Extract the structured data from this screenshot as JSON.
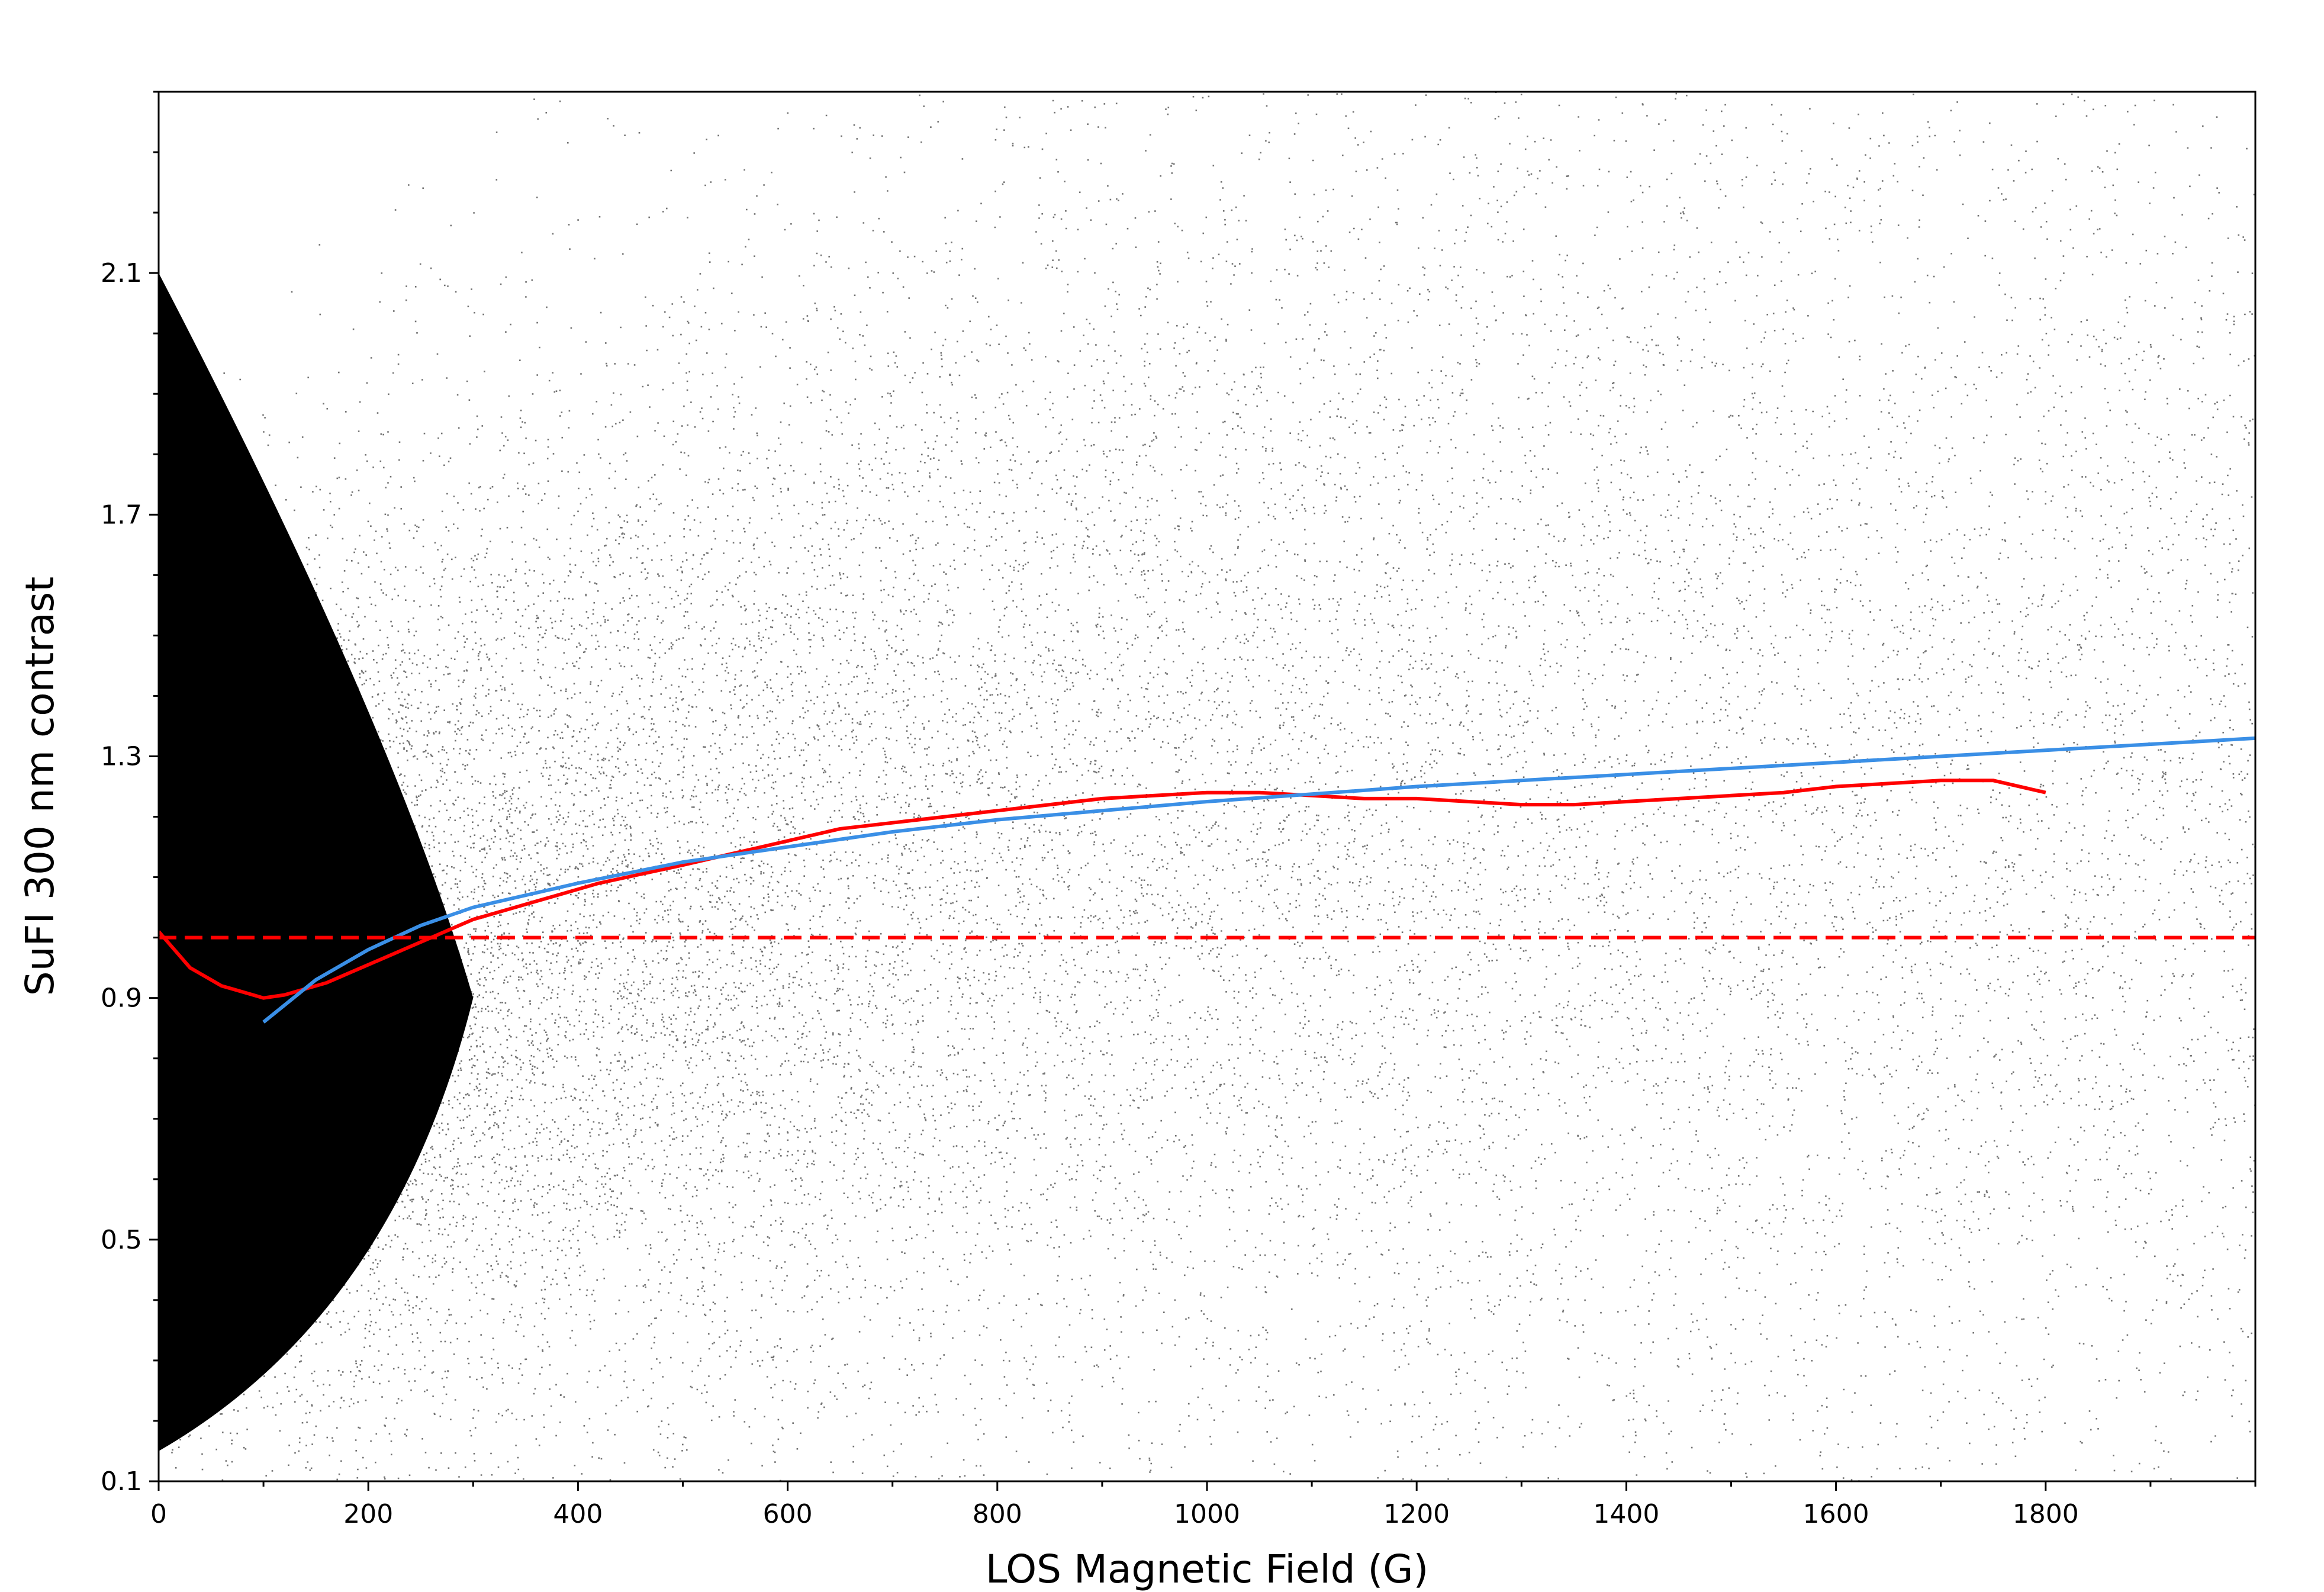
{
  "chart_data": {
    "type": "scatter",
    "title": "",
    "xlabel": "LOS Magnetic Field (G)",
    "ylabel": "SuFI 300 nm contrast",
    "xlim": [
      0,
      2000
    ],
    "ylim": [
      0.1,
      2.4
    ],
    "xticks": [
      0,
      200,
      400,
      600,
      800,
      1000,
      1200,
      1400,
      1600,
      1800
    ],
    "xtick_labels": [
      "0",
      "200",
      "400",
      "600",
      "800",
      "1000",
      "1200",
      "1400",
      "1600",
      "1800"
    ],
    "yticks": [
      0.1,
      0.5,
      0.9,
      1.3,
      1.7,
      2.1
    ],
    "ytick_labels": [
      "0.1",
      "0.5",
      "0.9",
      "1.3",
      "1.7",
      "2.1"
    ],
    "grid": false,
    "legend": "none",
    "colors": {
      "scatter": "#000000",
      "binned_mean": "#ff0000",
      "fit": "#3a8fe6",
      "reference": "#ff0000"
    },
    "series": [
      {
        "kind": "scatter-cloud",
        "color": "#000000",
        "description_density": [
          {
            "x": 0,
            "y_low": 0.13,
            "y_high": 2.1
          },
          {
            "x": 200,
            "y_low": 0.15,
            "y_high": 2.4
          },
          {
            "x": 600,
            "y_low": 0.1,
            "y_high": 2.4
          },
          {
            "x": 1200,
            "y_low": 0.1,
            "y_high": 2.4
          },
          {
            "x": 2000,
            "y_low": 0.1,
            "y_high": 2.4
          }
        ]
      },
      {
        "kind": "line",
        "color": "#ff0000",
        "x": [
          0,
          10,
          20,
          30,
          40,
          50,
          60,
          70,
          80,
          90,
          100,
          120,
          140,
          160,
          180,
          200,
          220,
          240,
          260,
          280,
          300,
          340,
          380,
          420,
          460,
          500,
          550,
          600,
          650,
          700,
          750,
          800,
          850,
          900,
          950,
          1000,
          1050,
          1100,
          1150,
          1200,
          1250,
          1300,
          1350,
          1400,
          1450,
          1500,
          1550,
          1600,
          1650,
          1700,
          1750,
          1800
        ],
        "y": [
          1.01,
          0.99,
          0.97,
          0.95,
          0.94,
          0.93,
          0.92,
          0.915,
          0.91,
          0.905,
          0.9,
          0.905,
          0.915,
          0.925,
          0.94,
          0.955,
          0.97,
          0.985,
          1.0,
          1.015,
          1.03,
          1.05,
          1.07,
          1.09,
          1.105,
          1.12,
          1.14,
          1.16,
          1.18,
          1.19,
          1.2,
          1.21,
          1.22,
          1.23,
          1.235,
          1.24,
          1.24,
          1.235,
          1.23,
          1.23,
          1.225,
          1.22,
          1.22,
          1.225,
          1.23,
          1.235,
          1.24,
          1.25,
          1.255,
          1.26,
          1.26,
          1.24
        ]
      },
      {
        "kind": "line",
        "color": "#3a8fe6",
        "x": [
          100,
          150,
          200,
          250,
          300,
          350,
          400,
          500,
          600,
          700,
          800,
          900,
          1000,
          1200,
          1400,
          1600,
          1800,
          2000
        ],
        "y": [
          0.86,
          0.93,
          0.98,
          1.02,
          1.05,
          1.07,
          1.09,
          1.125,
          1.15,
          1.175,
          1.195,
          1.21,
          1.225,
          1.25,
          1.27,
          1.29,
          1.31,
          1.33
        ]
      },
      {
        "kind": "dashed-line",
        "color": "#ff0000",
        "x": [
          0,
          2000
        ],
        "y": [
          1.0,
          1.0
        ]
      }
    ]
  }
}
